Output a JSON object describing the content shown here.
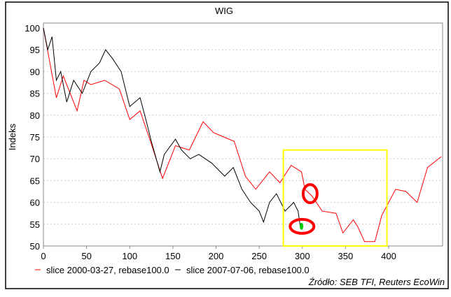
{
  "chart_data": {
    "type": "line",
    "title": "WIG",
    "xlabel": "",
    "ylabel": "Indeks",
    "xlim": [
      0,
      460
    ],
    "ylim": [
      50,
      100
    ],
    "xticks": [
      0,
      50,
      100,
      150,
      200,
      250,
      300,
      350,
      400
    ],
    "yticks": [
      50,
      55,
      60,
      65,
      70,
      75,
      80,
      85,
      90,
      95,
      100
    ],
    "grid": true,
    "legend_position": "bottom",
    "source": "Źródło: SEB TFI, Reuters EcoWin",
    "series": [
      {
        "name": "slice 2000-03-27, rebase100.0",
        "color": "#ff0000",
        "x": [
          0,
          6,
          15,
          23,
          39,
          47,
          55,
          71,
          88,
          100,
          112,
          124,
          138,
          153,
          169,
          185,
          197,
          209,
          221,
          234,
          246,
          262,
          274,
          287,
          299,
          303,
          311,
          323,
          339,
          347,
          359,
          364,
          372,
          384,
          392,
          400,
          408,
          420,
          433,
          445,
          461
        ],
        "y": [
          100,
          93.6,
          84,
          89,
          81,
          88,
          87,
          88,
          86,
          79,
          81,
          74,
          65.5,
          73,
          72,
          78.5,
          76,
          75,
          74,
          66,
          63,
          67,
          64.5,
          68.5,
          67,
          63,
          61.5,
          58,
          57.5,
          53,
          56,
          54.5,
          51,
          51,
          57,
          60,
          63,
          62.5,
          60,
          68,
          70.5
        ]
      },
      {
        "name": "slice 2007-07-06, rebase100.0",
        "color": "#000000",
        "x": [
          0,
          5,
          10,
          15,
          20,
          27,
          35,
          45,
          55,
          65,
          72,
          80,
          90,
          100,
          112,
          120,
          125,
          135,
          140,
          153,
          160,
          170,
          180,
          195,
          210,
          220,
          230,
          240,
          250,
          255,
          262,
          270,
          280,
          290,
          295,
          298
        ],
        "y": [
          100,
          95,
          98,
          88,
          90,
          83,
          88,
          85,
          90,
          92,
          95,
          93,
          90,
          82,
          84,
          78,
          74,
          67,
          71,
          74.5,
          72,
          70,
          71,
          69,
          66,
          68,
          63,
          60,
          58,
          55.5,
          60,
          62,
          58,
          60,
          58,
          54
        ]
      }
    ],
    "annotations": [
      {
        "type": "rectangle",
        "color": "#ffff00",
        "x": [
          278,
          398
        ],
        "y": [
          50,
          72
        ]
      },
      {
        "type": "ellipse",
        "color": "#ff0000",
        "center": [
          309,
          62
        ]
      },
      {
        "type": "ellipse",
        "color": "#ff0000",
        "center": [
          298,
          54.5
        ]
      },
      {
        "type": "marker",
        "color": "#00cc00",
        "center": [
          299,
          54.5
        ]
      }
    ]
  }
}
